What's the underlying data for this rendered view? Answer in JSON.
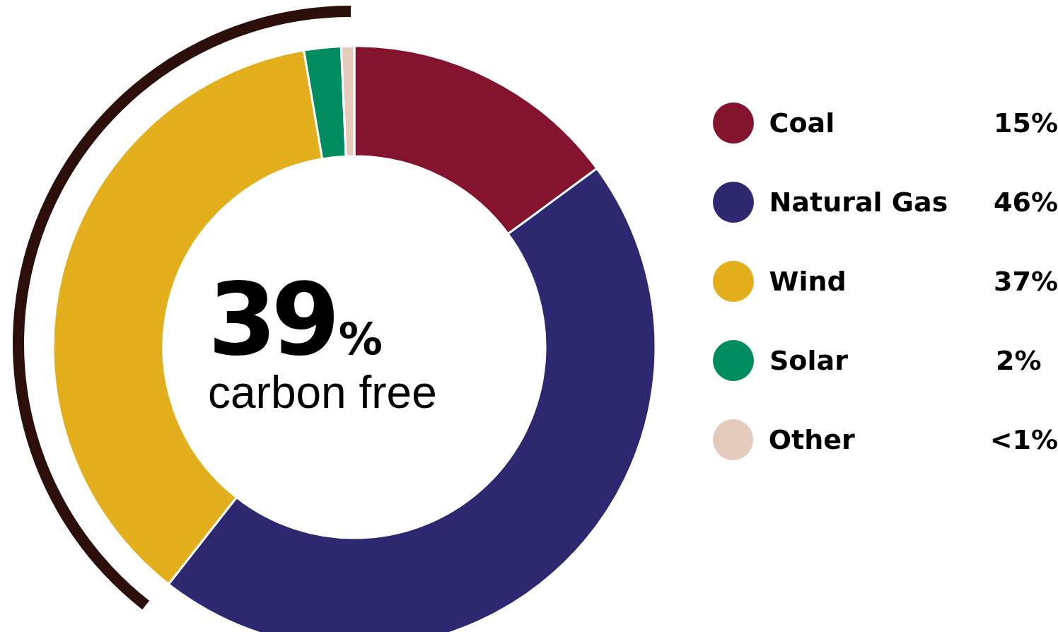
{
  "chart_data": {
    "type": "donut",
    "categories": [
      "Coal",
      "Natural Gas",
      "Wind",
      "Solar",
      "Other"
    ],
    "values": [
      15,
      46,
      37,
      2,
      0.7
    ],
    "value_labels": [
      "15%",
      "46%",
      "37%",
      "2%",
      "<1%"
    ],
    "colors": [
      "#84132e",
      "#2e2870",
      "#e3af1c",
      "#008c5e",
      "#e5cbbb"
    ],
    "annotations": [
      "39%",
      "carbon free"
    ],
    "legend": "right"
  }
}
